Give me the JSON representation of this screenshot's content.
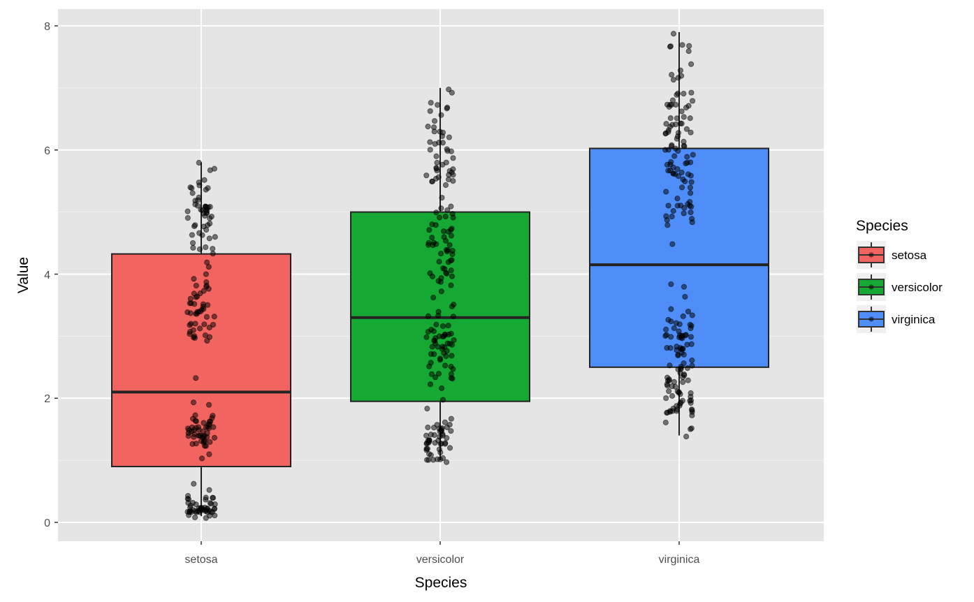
{
  "chart_data": {
    "type": "boxplot",
    "title": "",
    "xlabel": "Species",
    "ylabel": "Value",
    "ylim": [
      -0.3,
      8.27
    ],
    "yticks": [
      "0",
      "2",
      "4",
      "6",
      "8"
    ],
    "categories": [
      "setosa",
      "versicolor",
      "virginica"
    ],
    "grid": true,
    "legend": {
      "title": "Species",
      "position": "right",
      "entries": [
        "setosa",
        "versicolor",
        "virginica"
      ]
    },
    "colors": {
      "setosa": "#F2645F",
      "versicolor": "#15A933",
      "virginica": "#4F8DF8"
    },
    "boxes": [
      {
        "category": "setosa",
        "whisker_low": 0.1,
        "q1": 0.9,
        "median": 2.1,
        "q3": 4.325,
        "whisker_high": 5.8
      },
      {
        "category": "versicolor",
        "whisker_low": 1.0,
        "q1": 1.95,
        "median": 3.3,
        "q3": 5.0,
        "whisker_high": 7.0
      },
      {
        "category": "virginica",
        "whisker_low": 1.4,
        "q1": 2.5,
        "median": 4.15,
        "q3": 6.025,
        "whisker_high": 7.9
      }
    ],
    "points": {
      "setosa": [
        5.1,
        4.9,
        4.7,
        4.6,
        5.0,
        5.4,
        4.6,
        5.0,
        4.4,
        4.9,
        5.4,
        4.8,
        4.8,
        4.3,
        5.8,
        5.7,
        5.4,
        5.1,
        5.7,
        5.1,
        5.4,
        5.1,
        4.6,
        5.1,
        4.8,
        5.0,
        5.0,
        5.2,
        5.2,
        4.7,
        4.8,
        5.4,
        5.2,
        5.5,
        4.9,
        5.0,
        5.5,
        4.9,
        4.4,
        5.1,
        5.0,
        4.5,
        4.4,
        5.0,
        5.1,
        4.8,
        5.1,
        4.6,
        5.3,
        5.0,
        3.5,
        3.0,
        3.2,
        3.1,
        3.6,
        3.9,
        3.4,
        3.4,
        2.9,
        3.1,
        3.7,
        3.4,
        3.0,
        3.0,
        4.0,
        4.4,
        3.9,
        3.5,
        3.8,
        3.8,
        3.4,
        3.7,
        3.6,
        3.3,
        3.4,
        3.0,
        3.4,
        3.5,
        3.4,
        3.2,
        3.1,
        3.4,
        4.1,
        4.2,
        3.1,
        3.2,
        3.5,
        3.6,
        3.0,
        3.4,
        3.5,
        2.3,
        3.2,
        3.5,
        3.8,
        3.0,
        3.8,
        3.2,
        3.7,
        3.3,
        1.4,
        1.4,
        1.3,
        1.5,
        1.4,
        1.7,
        1.4,
        1.5,
        1.4,
        1.5,
        1.5,
        1.6,
        1.4,
        1.1,
        1.2,
        1.5,
        1.3,
        1.4,
        1.7,
        1.5,
        1.7,
        1.5,
        1.0,
        1.7,
        1.9,
        1.6,
        1.6,
        1.5,
        1.4,
        1.6,
        1.6,
        1.5,
        1.5,
        1.4,
        1.5,
        1.2,
        1.3,
        1.4,
        1.3,
        1.5,
        1.3,
        1.3,
        1.3,
        1.6,
        1.9,
        1.4,
        1.6,
        1.4,
        1.5,
        1.4,
        0.2,
        0.2,
        0.2,
        0.2,
        0.2,
        0.4,
        0.3,
        0.2,
        0.2,
        0.1,
        0.2,
        0.2,
        0.1,
        0.1,
        0.2,
        0.4,
        0.4,
        0.3,
        0.3,
        0.3,
        0.2,
        0.4,
        0.2,
        0.5,
        0.2,
        0.2,
        0.4,
        0.2,
        0.2,
        0.2,
        0.2,
        0.4,
        0.1,
        0.2,
        0.2,
        0.2,
        0.2,
        0.1,
        0.2,
        0.2,
        0.3,
        0.3,
        0.2,
        0.6,
        0.4,
        0.3,
        0.2,
        0.2,
        0.2,
        0.2
      ],
      "versicolor": [
        7.0,
        6.4,
        6.9,
        5.5,
        6.5,
        5.7,
        6.3,
        4.9,
        6.6,
        5.2,
        5.0,
        5.9,
        6.0,
        6.1,
        5.6,
        6.7,
        5.6,
        5.8,
        6.2,
        5.6,
        5.9,
        6.1,
        6.3,
        6.1,
        6.4,
        6.6,
        6.8,
        6.7,
        6.0,
        5.7,
        5.5,
        5.5,
        5.8,
        6.0,
        5.4,
        6.0,
        6.7,
        6.3,
        5.6,
        5.5,
        5.5,
        6.1,
        5.8,
        5.0,
        5.6,
        5.7,
        5.7,
        6.2,
        5.1,
        5.7,
        3.2,
        3.2,
        3.1,
        2.3,
        2.8,
        2.8,
        3.3,
        2.4,
        2.9,
        2.7,
        2.0,
        3.0,
        2.2,
        2.9,
        2.9,
        3.1,
        3.0,
        2.7,
        2.2,
        2.5,
        3.2,
        2.8,
        2.5,
        2.8,
        2.9,
        3.0,
        2.8,
        3.0,
        2.9,
        2.6,
        2.4,
        2.4,
        2.7,
        2.7,
        3.0,
        3.4,
        3.1,
        2.3,
        3.0,
        2.5,
        2.6,
        3.0,
        2.6,
        2.3,
        2.7,
        3.0,
        2.9,
        2.9,
        2.5,
        2.8,
        4.7,
        4.5,
        4.9,
        4.0,
        4.6,
        4.5,
        4.7,
        3.3,
        4.6,
        3.9,
        3.5,
        4.2,
        4.0,
        4.7,
        3.6,
        4.4,
        4.5,
        4.1,
        4.5,
        3.9,
        4.8,
        4.0,
        4.9,
        4.7,
        4.3,
        4.4,
        4.8,
        5.0,
        4.5,
        3.5,
        3.8,
        3.7,
        3.9,
        5.1,
        4.5,
        4.5,
        4.7,
        4.4,
        4.1,
        4.0,
        4.4,
        4.6,
        4.0,
        3.3,
        4.2,
        4.2,
        4.2,
        4.3,
        3.0,
        4.1,
        1.4,
        1.5,
        1.5,
        1.3,
        1.5,
        1.3,
        1.6,
        1.0,
        1.3,
        1.4,
        1.0,
        1.5,
        1.0,
        1.4,
        1.3,
        1.4,
        1.5,
        1.0,
        1.5,
        1.1,
        1.8,
        1.3,
        1.5,
        1.2,
        1.3,
        1.4,
        1.4,
        1.7,
        1.5,
        1.0,
        1.1,
        1.0,
        1.2,
        1.6,
        1.5,
        1.6,
        1.5,
        1.3,
        1.3,
        1.3,
        1.2,
        1.4,
        1.2,
        1.0,
        1.3,
        1.2,
        1.3,
        1.3,
        1.1,
        1.3
      ],
      "virginica": [
        6.3,
        5.8,
        7.1,
        6.3,
        6.5,
        7.6,
        4.9,
        7.3,
        6.7,
        7.2,
        6.5,
        6.4,
        6.8,
        5.7,
        5.8,
        6.4,
        6.5,
        7.7,
        7.7,
        6.0,
        6.9,
        5.6,
        7.7,
        6.3,
        6.7,
        7.2,
        6.2,
        6.1,
        6.4,
        7.2,
        7.4,
        7.9,
        6.4,
        6.3,
        6.1,
        7.7,
        6.3,
        6.4,
        6.0,
        6.9,
        6.7,
        6.9,
        5.8,
        6.8,
        6.7,
        6.7,
        6.3,
        6.5,
        6.2,
        5.9,
        3.3,
        2.7,
        3.0,
        2.9,
        3.0,
        3.0,
        2.5,
        2.9,
        2.5,
        3.6,
        3.2,
        2.7,
        3.0,
        2.5,
        2.8,
        3.2,
        3.0,
        3.8,
        2.6,
        2.2,
        3.2,
        2.8,
        2.8,
        2.7,
        3.3,
        3.2,
        2.8,
        3.0,
        2.8,
        3.0,
        2.8,
        3.8,
        2.8,
        2.8,
        2.6,
        3.0,
        3.4,
        3.1,
        3.0,
        3.1,
        3.1,
        3.1,
        2.7,
        3.2,
        3.3,
        3.0,
        2.5,
        3.0,
        3.4,
        3.0,
        6.0,
        5.1,
        5.9,
        5.6,
        5.8,
        6.6,
        4.5,
        6.3,
        5.8,
        6.1,
        5.1,
        5.3,
        5.5,
        5.0,
        5.1,
        5.3,
        5.5,
        6.7,
        6.9,
        5.0,
        5.7,
        4.9,
        6.7,
        4.9,
        5.7,
        6.0,
        4.8,
        4.9,
        5.6,
        5.8,
        6.1,
        6.4,
        5.6,
        5.1,
        5.6,
        6.1,
        5.6,
        5.5,
        4.8,
        5.4,
        5.6,
        5.1,
        5.1,
        5.9,
        5.7,
        5.2,
        5.0,
        5.2,
        5.4,
        5.1,
        2.5,
        1.9,
        2.1,
        1.8,
        2.2,
        2.1,
        1.7,
        1.8,
        1.8,
        2.5,
        2.0,
        1.9,
        2.1,
        2.0,
        2.4,
        2.3,
        1.8,
        2.2,
        2.3,
        1.5,
        2.3,
        2.0,
        2.0,
        1.8,
        2.1,
        1.8,
        1.8,
        1.8,
        2.1,
        1.6,
        1.9,
        2.0,
        2.2,
        1.5,
        1.4,
        2.3,
        2.4,
        1.8,
        1.8,
        2.1,
        2.4,
        2.3,
        1.9,
        2.3,
        2.5,
        2.3,
        1.9,
        2.0,
        2.3,
        1.8
      ]
    }
  }
}
